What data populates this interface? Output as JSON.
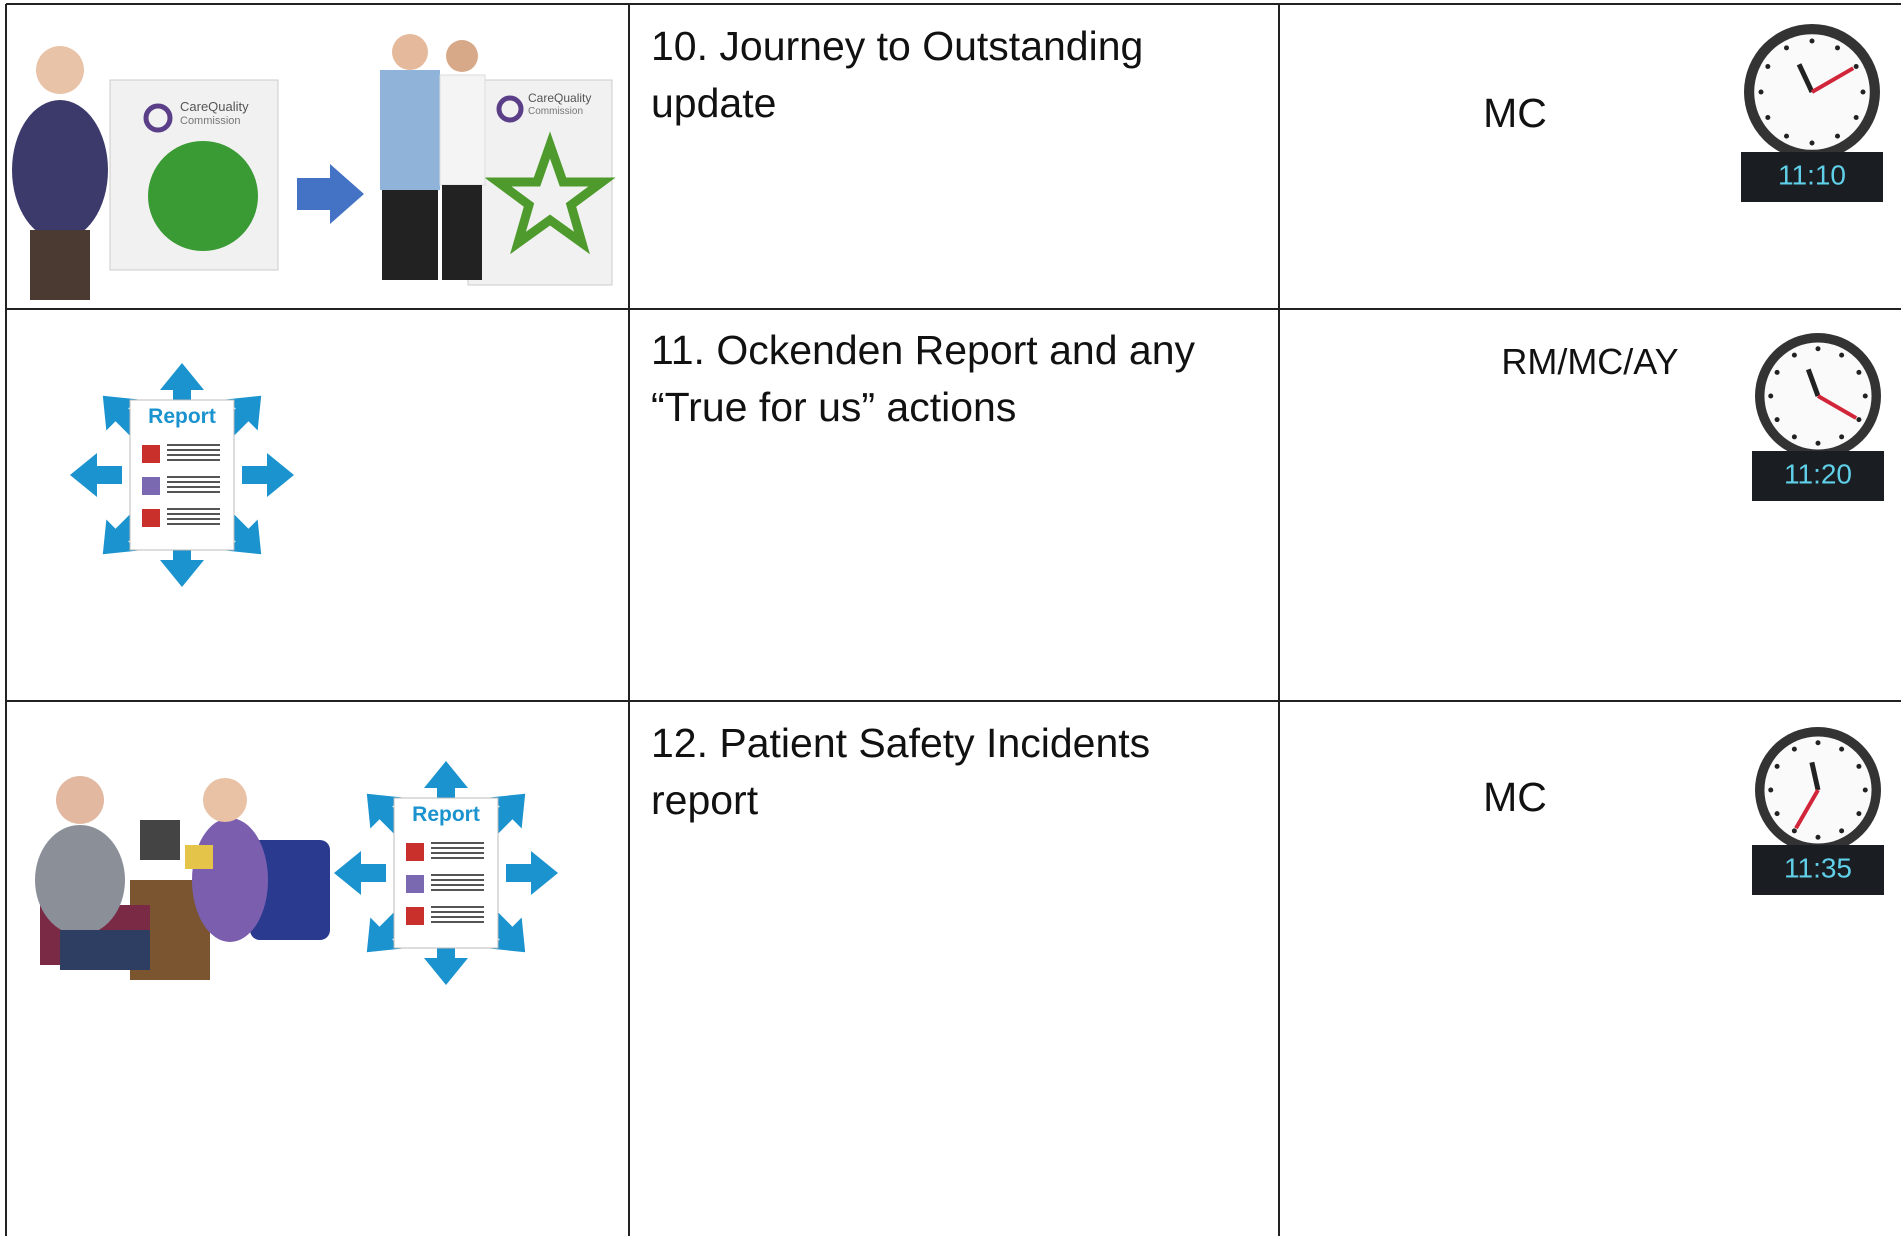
{
  "table": {
    "rows": [
      {
        "title": "10. Journey to Outstanding update",
        "presenter": "MC",
        "time": "11:10",
        "logo_text": [
          "CareQuality",
          "Commission"
        ]
      },
      {
        "title": "11. Ockenden Report and any “True for us” actions",
        "presenter": "RM/MC/AY",
        "time": "11:20",
        "report_label": "Report"
      },
      {
        "title": "12. Patient Safety Incidents report",
        "presenter": "MC",
        "time": "11:35",
        "report_label": "Report"
      }
    ]
  }
}
